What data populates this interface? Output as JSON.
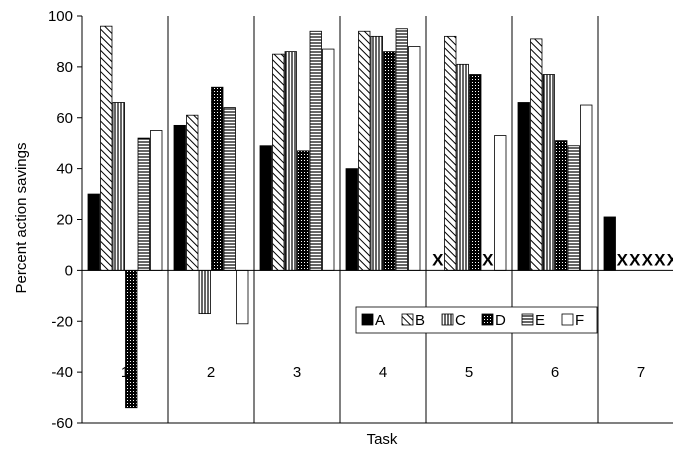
{
  "chart_data": {
    "type": "bar",
    "xlabel": "Task",
    "ylabel": "Percent action savings",
    "ylim": [
      -60,
      100
    ],
    "yticks": [
      -60,
      -40,
      -20,
      0,
      20,
      40,
      60,
      80,
      100
    ],
    "ytick_labels": [
      "-60",
      "-40",
      "-20",
      "0",
      "20",
      "40",
      "60",
      "80",
      "100"
    ],
    "categories": [
      "1",
      "2",
      "3",
      "4",
      "5",
      "6",
      "7"
    ],
    "grid": "vertical separators between task groups",
    "legend_placement": "center-right, inside plot just below zero line",
    "series": [
      {
        "name": "A",
        "pattern": "solid-black",
        "values": [
          30,
          57,
          49,
          40,
          null,
          66,
          21
        ]
      },
      {
        "name": "B",
        "pattern": "diagonal-hatch",
        "values": [
          96,
          61,
          85,
          94,
          92,
          91,
          null
        ]
      },
      {
        "name": "C",
        "pattern": "vertical-lines",
        "values": [
          66,
          -17,
          86,
          92,
          81,
          77,
          null
        ]
      },
      {
        "name": "D",
        "pattern": "dense-crosshatch",
        "values": [
          -54,
          72,
          47,
          86,
          77,
          51,
          null
        ]
      },
      {
        "name": "E",
        "pattern": "horizontal-lines",
        "values": [
          52,
          64,
          94,
          95,
          null,
          49,
          null
        ]
      },
      {
        "name": "F",
        "pattern": "white",
        "values": [
          55,
          -21,
          87,
          88,
          53,
          65,
          null
        ]
      }
    ],
    "missing_marker": "X"
  }
}
